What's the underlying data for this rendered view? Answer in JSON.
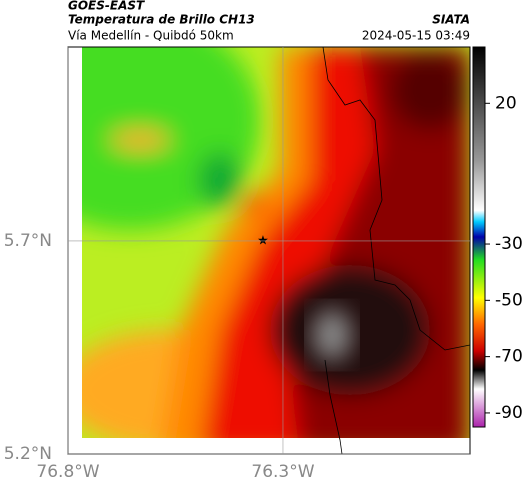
{
  "header": {
    "source": "GOES-EAST",
    "title": "Temperatura de Brillo CH13",
    "org": "SIATA",
    "subtitle": "Vía Medellín - Quibdó 50km",
    "datetime": "2024-05-15 03:49"
  },
  "map": {
    "xlim": [
      -76.8,
      -75.865
    ],
    "ylim": [
      5.2,
      6.155
    ],
    "xticks": [
      {
        "value": -76.8,
        "label": "76.8°W"
      },
      {
        "value": -76.3,
        "label": "76.3°W"
      }
    ],
    "yticks": [
      {
        "value": 5.2,
        "label": "5.2°N"
      },
      {
        "value": 5.7,
        "label": "5.7°N"
      }
    ],
    "grid": true
  },
  "colorbar": {
    "lim": [
      -95,
      40
    ],
    "ticks": [
      20,
      -30,
      -50,
      -70,
      -90
    ]
  }
}
